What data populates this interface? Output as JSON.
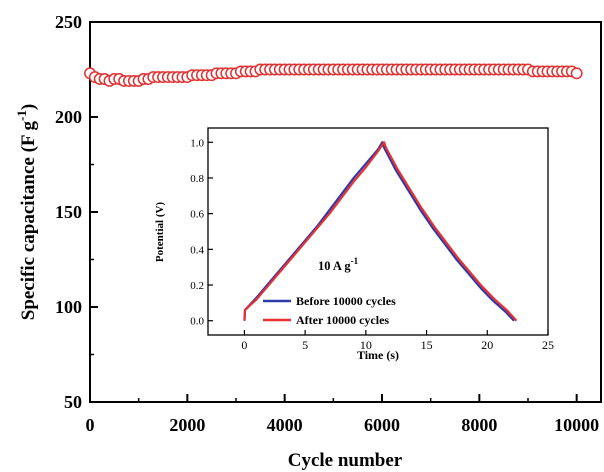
{
  "chart_data": [
    {
      "type": "scatter",
      "xlabel": "Cycle number",
      "ylabel_main": "Specific capacitance (F g",
      "ylabel_sup": "-1",
      "ylabel_close": ")",
      "xlim": [
        0,
        10500
      ],
      "ylim": [
        50,
        250
      ],
      "xticks": [
        0,
        2000,
        4000,
        6000,
        8000,
        10000
      ],
      "yticks": [
        50,
        100,
        150,
        200,
        250
      ],
      "xtick_labels": [
        "0",
        "2000",
        "4000",
        "6000",
        "8000",
        "10000"
      ],
      "ytick_labels": [
        "50",
        "100",
        "150",
        "200",
        "250"
      ],
      "marker": "open-circle",
      "color": "#e03030",
      "x": [
        0,
        100,
        200,
        300,
        400,
        500,
        600,
        700,
        800,
        900,
        1000,
        1100,
        1200,
        1300,
        1400,
        1500,
        1600,
        1700,
        1800,
        1900,
        2000,
        2100,
        2200,
        2300,
        2400,
        2500,
        2600,
        2700,
        2800,
        2900,
        3000,
        3100,
        3200,
        3300,
        3400,
        3500,
        3600,
        3700,
        3800,
        3900,
        4000,
        4100,
        4200,
        4300,
        4400,
        4500,
        4600,
        4700,
        4800,
        4900,
        5000,
        5100,
        5200,
        5300,
        5400,
        5500,
        5600,
        5700,
        5800,
        5900,
        6000,
        6100,
        6200,
        6300,
        6400,
        6500,
        6600,
        6700,
        6800,
        6900,
        7000,
        7100,
        7200,
        7300,
        7400,
        7500,
        7600,
        7700,
        7800,
        7900,
        8000,
        8100,
        8200,
        8300,
        8400,
        8500,
        8600,
        8700,
        8800,
        8900,
        9000,
        9100,
        9200,
        9300,
        9400,
        9500,
        9600,
        9700,
        9800,
        9900,
        10000
      ],
      "y": [
        223,
        221,
        220,
        220,
        219,
        220,
        220,
        219,
        219,
        219,
        219,
        220,
        220,
        221,
        221,
        221,
        221,
        221,
        221,
        221,
        221,
        222,
        222,
        222,
        222,
        222,
        223,
        223,
        223,
        223,
        223,
        224,
        224,
        224,
        224,
        225,
        225,
        225,
        225,
        225,
        225,
        225,
        225,
        225,
        225,
        225,
        225,
        225,
        225,
        225,
        225,
        225,
        225,
        225,
        225,
        225,
        225,
        225,
        225,
        225,
        225,
        225,
        225,
        225,
        225,
        225,
        225,
        225,
        225,
        225,
        225,
        225,
        225,
        225,
        225,
        225,
        225,
        225,
        225,
        225,
        225,
        225,
        225,
        225,
        225,
        225,
        225,
        225,
        225,
        225,
        225,
        224,
        224,
        224,
        224,
        224,
        224,
        224,
        224,
        224,
        223
      ]
    },
    {
      "type": "line",
      "xlabel": "Time (s)",
      "ylabel": "Potential (V)",
      "xlim": [
        -3,
        25
      ],
      "ylim": [
        -0.08,
        1.08
      ],
      "xticks": [
        0,
        5,
        10,
        15,
        20,
        25
      ],
      "yticks": [
        0.0,
        0.2,
        0.4,
        0.6,
        0.8,
        1.0
      ],
      "xtick_labels": [
        "0",
        "5",
        "10",
        "15",
        "20",
        "25"
      ],
      "ytick_labels": [
        "0.0",
        "0.2",
        "0.4",
        "0.6",
        "0.8",
        "1.0"
      ],
      "annotation_main": "10 A g",
      "annotation_sup": "-1",
      "series": [
        {
          "name": "Before 10000 cycles",
          "color": "#2f3aa8",
          "x": [
            0,
            0.05,
            1,
            2,
            3,
            4,
            5,
            6,
            7,
            8,
            9,
            10,
            11,
            11.35,
            11.5,
            12.5,
            13.5,
            14.5,
            15.5,
            16.5,
            17.5,
            18.5,
            19.5,
            20.5,
            21.5,
            22.2
          ],
          "y": [
            0,
            0.06,
            0.13,
            0.21,
            0.29,
            0.37,
            0.45,
            0.53,
            0.62,
            0.71,
            0.8,
            0.88,
            0.96,
            1.0,
            0.97,
            0.84,
            0.73,
            0.62,
            0.52,
            0.43,
            0.34,
            0.26,
            0.18,
            0.11,
            0.05,
            0.0
          ]
        },
        {
          "name": "After 10000 cycles",
          "color": "#e83030",
          "x": [
            0,
            0.05,
            1,
            2,
            3,
            4,
            5,
            6,
            7,
            8,
            9,
            10,
            11,
            11.5,
            11.65,
            12.6,
            13.6,
            14.6,
            15.6,
            16.6,
            17.6,
            18.6,
            19.6,
            20.6,
            21.6,
            22.4
          ],
          "y": [
            0,
            0.06,
            0.12,
            0.2,
            0.28,
            0.36,
            0.44,
            0.52,
            0.6,
            0.69,
            0.78,
            0.86,
            0.95,
            1.0,
            0.97,
            0.85,
            0.74,
            0.63,
            0.53,
            0.44,
            0.35,
            0.27,
            0.19,
            0.12,
            0.06,
            0.0
          ]
        }
      ]
    }
  ]
}
